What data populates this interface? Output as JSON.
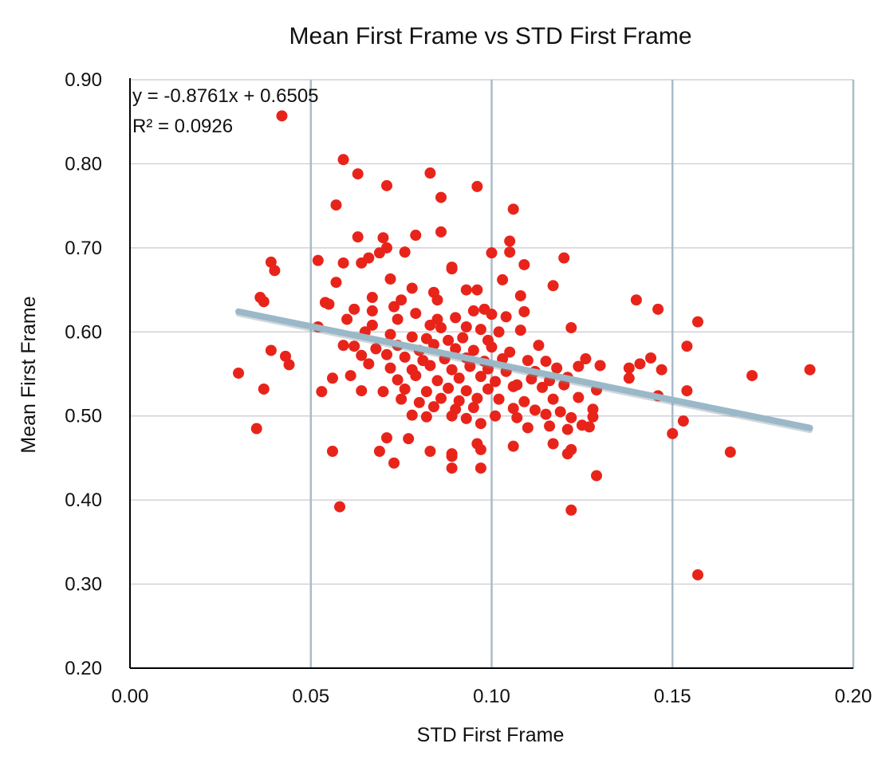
{
  "chart_data": {
    "type": "scatter",
    "title": "Mean First Frame vs STD First Frame",
    "xlabel": "STD First Frame",
    "ylabel": "Mean First Frame",
    "xlim": [
      0.0,
      0.2
    ],
    "ylim": [
      0.2,
      0.9
    ],
    "x_ticks": [
      "0.00",
      "0.05",
      "0.10",
      "0.15",
      "0.20"
    ],
    "y_ticks": [
      "0.90",
      "0.80",
      "0.70",
      "0.60",
      "0.50",
      "0.40",
      "0.30",
      "0.20"
    ],
    "grid": true,
    "colors": {
      "points": "#e8241a",
      "trendline": "#9ab8c8",
      "vgrid": "#a9bcc8",
      "hgrid": "#c8c8d0",
      "axis": "#000000"
    },
    "trendline": {
      "slope": -0.8761,
      "intercept": 0.6505,
      "x_range": [
        0.03,
        0.188
      ]
    },
    "annotations": {
      "equation": "y = -0.8761x + 0.6505",
      "r_squared": "R² = 0.0926"
    },
    "series": [
      {
        "points": [
          [
            0.042,
            0.857
          ],
          [
            0.059,
            0.805
          ],
          [
            0.063,
            0.788
          ],
          [
            0.083,
            0.789
          ],
          [
            0.071,
            0.774
          ],
          [
            0.096,
            0.773
          ],
          [
            0.086,
            0.76
          ],
          [
            0.057,
            0.751
          ],
          [
            0.106,
            0.746
          ],
          [
            0.079,
            0.715
          ],
          [
            0.086,
            0.719
          ],
          [
            0.063,
            0.713
          ],
          [
            0.07,
            0.712
          ],
          [
            0.071,
            0.7
          ],
          [
            0.069,
            0.694
          ],
          [
            0.066,
            0.688
          ],
          [
            0.076,
            0.695
          ],
          [
            0.105,
            0.708
          ],
          [
            0.105,
            0.695
          ],
          [
            0.1,
            0.694
          ],
          [
            0.12,
            0.688
          ],
          [
            0.052,
            0.685
          ],
          [
            0.059,
            0.682
          ],
          [
            0.039,
            0.683
          ],
          [
            0.04,
            0.673
          ],
          [
            0.064,
            0.682
          ],
          [
            0.089,
            0.677
          ],
          [
            0.089,
            0.675
          ],
          [
            0.109,
            0.68
          ],
          [
            0.072,
            0.663
          ],
          [
            0.057,
            0.659
          ],
          [
            0.103,
            0.662
          ],
          [
            0.117,
            0.655
          ],
          [
            0.078,
            0.652
          ],
          [
            0.093,
            0.65
          ],
          [
            0.096,
            0.65
          ],
          [
            0.084,
            0.647
          ],
          [
            0.036,
            0.641
          ],
          [
            0.037,
            0.636
          ],
          [
            0.054,
            0.635
          ],
          [
            0.055,
            0.633
          ],
          [
            0.067,
            0.641
          ],
          [
            0.075,
            0.638
          ],
          [
            0.085,
            0.638
          ],
          [
            0.108,
            0.643
          ],
          [
            0.14,
            0.638
          ],
          [
            0.062,
            0.627
          ],
          [
            0.06,
            0.615
          ],
          [
            0.067,
            0.625
          ],
          [
            0.073,
            0.63
          ],
          [
            0.079,
            0.622
          ],
          [
            0.085,
            0.615
          ],
          [
            0.09,
            0.617
          ],
          [
            0.095,
            0.625
          ],
          [
            0.098,
            0.627
          ],
          [
            0.1,
            0.621
          ],
          [
            0.104,
            0.618
          ],
          [
            0.109,
            0.624
          ],
          [
            0.146,
            0.627
          ],
          [
            0.052,
            0.606
          ],
          [
            0.067,
            0.608
          ],
          [
            0.074,
            0.615
          ],
          [
            0.083,
            0.608
          ],
          [
            0.086,
            0.605
          ],
          [
            0.093,
            0.606
          ],
          [
            0.097,
            0.603
          ],
          [
            0.102,
            0.6
          ],
          [
            0.108,
            0.602
          ],
          [
            0.122,
            0.605
          ],
          [
            0.157,
            0.612
          ],
          [
            0.065,
            0.6
          ],
          [
            0.072,
            0.597
          ],
          [
            0.078,
            0.594
          ],
          [
            0.082,
            0.592
          ],
          [
            0.088,
            0.59
          ],
          [
            0.092,
            0.593
          ],
          [
            0.099,
            0.59
          ],
          [
            0.059,
            0.584
          ],
          [
            0.062,
            0.583
          ],
          [
            0.068,
            0.58
          ],
          [
            0.074,
            0.584
          ],
          [
            0.08,
            0.578
          ],
          [
            0.084,
            0.585
          ],
          [
            0.09,
            0.58
          ],
          [
            0.095,
            0.578
          ],
          [
            0.1,
            0.582
          ],
          [
            0.105,
            0.576
          ],
          [
            0.113,
            0.584
          ],
          [
            0.154,
            0.583
          ],
          [
            0.039,
            0.578
          ],
          [
            0.043,
            0.571
          ],
          [
            0.064,
            0.572
          ],
          [
            0.071,
            0.573
          ],
          [
            0.076,
            0.57
          ],
          [
            0.081,
            0.566
          ],
          [
            0.087,
            0.568
          ],
          [
            0.093,
            0.569
          ],
          [
            0.098,
            0.565
          ],
          [
            0.103,
            0.568
          ],
          [
            0.11,
            0.566
          ],
          [
            0.115,
            0.565
          ],
          [
            0.126,
            0.568
          ],
          [
            0.138,
            0.557
          ],
          [
            0.141,
            0.562
          ],
          [
            0.144,
            0.569
          ],
          [
            0.03,
            0.551
          ],
          [
            0.044,
            0.561
          ],
          [
            0.066,
            0.562
          ],
          [
            0.072,
            0.557
          ],
          [
            0.078,
            0.555
          ],
          [
            0.083,
            0.56
          ],
          [
            0.089,
            0.555
          ],
          [
            0.094,
            0.559
          ],
          [
            0.099,
            0.556
          ],
          [
            0.104,
            0.553
          ],
          [
            0.112,
            0.553
          ],
          [
            0.118,
            0.557
          ],
          [
            0.124,
            0.559
          ],
          [
            0.13,
            0.56
          ],
          [
            0.147,
            0.555
          ],
          [
            0.056,
            0.545
          ],
          [
            0.061,
            0.548
          ],
          [
            0.074,
            0.543
          ],
          [
            0.079,
            0.548
          ],
          [
            0.085,
            0.542
          ],
          [
            0.091,
            0.545
          ],
          [
            0.097,
            0.547
          ],
          [
            0.101,
            0.541
          ],
          [
            0.107,
            0.537
          ],
          [
            0.111,
            0.544
          ],
          [
            0.116,
            0.542
          ],
          [
            0.121,
            0.546
          ],
          [
            0.138,
            0.545
          ],
          [
            0.172,
            0.548
          ],
          [
            0.188,
            0.555
          ],
          [
            0.037,
            0.532
          ],
          [
            0.053,
            0.529
          ],
          [
            0.064,
            0.53
          ],
          [
            0.07,
            0.529
          ],
          [
            0.076,
            0.532
          ],
          [
            0.082,
            0.529
          ],
          [
            0.088,
            0.533
          ],
          [
            0.093,
            0.53
          ],
          [
            0.099,
            0.532
          ],
          [
            0.106,
            0.535
          ],
          [
            0.114,
            0.534
          ],
          [
            0.12,
            0.537
          ],
          [
            0.129,
            0.531
          ],
          [
            0.154,
            0.53
          ],
          [
            0.075,
            0.52
          ],
          [
            0.08,
            0.516
          ],
          [
            0.086,
            0.521
          ],
          [
            0.091,
            0.518
          ],
          [
            0.096,
            0.521
          ],
          [
            0.102,
            0.52
          ],
          [
            0.109,
            0.517
          ],
          [
            0.117,
            0.52
          ],
          [
            0.124,
            0.522
          ],
          [
            0.146,
            0.524
          ],
          [
            0.084,
            0.511
          ],
          [
            0.09,
            0.508
          ],
          [
            0.095,
            0.51
          ],
          [
            0.106,
            0.509
          ],
          [
            0.112,
            0.507
          ],
          [
            0.119,
            0.505
          ],
          [
            0.128,
            0.508
          ],
          [
            0.078,
            0.501
          ],
          [
            0.082,
            0.499
          ],
          [
            0.089,
            0.5
          ],
          [
            0.093,
            0.497
          ],
          [
            0.101,
            0.5
          ],
          [
            0.107,
            0.498
          ],
          [
            0.115,
            0.502
          ],
          [
            0.122,
            0.498
          ],
          [
            0.128,
            0.499
          ],
          [
            0.153,
            0.494
          ],
          [
            0.035,
            0.485
          ],
          [
            0.097,
            0.491
          ],
          [
            0.11,
            0.486
          ],
          [
            0.116,
            0.488
          ],
          [
            0.125,
            0.489
          ],
          [
            0.127,
            0.487
          ],
          [
            0.121,
            0.484
          ],
          [
            0.15,
            0.479
          ],
          [
            0.071,
            0.474
          ],
          [
            0.077,
            0.473
          ],
          [
            0.096,
            0.467
          ],
          [
            0.106,
            0.464
          ],
          [
            0.117,
            0.467
          ],
          [
            0.122,
            0.46
          ],
          [
            0.056,
            0.458
          ],
          [
            0.069,
            0.458
          ],
          [
            0.083,
            0.458
          ],
          [
            0.089,
            0.455
          ],
          [
            0.089,
            0.452
          ],
          [
            0.097,
            0.46
          ],
          [
            0.121,
            0.455
          ],
          [
            0.166,
            0.457
          ],
          [
            0.073,
            0.444
          ],
          [
            0.089,
            0.438
          ],
          [
            0.097,
            0.438
          ],
          [
            0.129,
            0.429
          ],
          [
            0.058,
            0.392
          ],
          [
            0.122,
            0.388
          ],
          [
            0.157,
            0.311
          ]
        ]
      }
    ]
  }
}
